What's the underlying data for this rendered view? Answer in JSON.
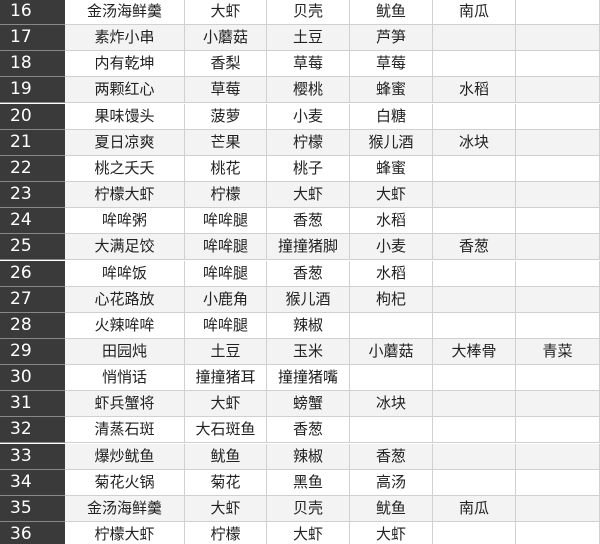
{
  "table": {
    "rows": [
      [
        "16",
        "金汤海鲜羹",
        "大虾",
        "贝壳",
        "鱿鱼",
        "南瓜"
      ],
      [
        "17",
        "素炸小串",
        "小蘑菇",
        "土豆",
        "芦笋"
      ],
      [
        "18",
        "内有乾坤",
        "香梨",
        "草莓",
        "草莓"
      ],
      [
        "19",
        "两颗红心",
        "草莓",
        "樱桃",
        "蜂蜜",
        "水稻"
      ],
      [
        "20",
        "果味馒头",
        "菠萝",
        "小麦",
        "白糖"
      ],
      [
        "21",
        "夏日凉爽",
        "芒果",
        "柠檬",
        "猴儿酒",
        "冰块"
      ],
      [
        "22",
        "桃之夭夭",
        "桃花",
        "桃子",
        "蜂蜜"
      ],
      [
        "23",
        "柠檬大虾",
        "柠檬",
        "大虾",
        "大虾"
      ],
      [
        "24",
        "哞哞粥",
        "哞哞腿",
        "香葱",
        "水稻"
      ],
      [
        "25",
        "大满足饺",
        "哞哞腿",
        "撞撞猪脚",
        "小麦",
        "香葱"
      ],
      [
        "26",
        "哞哞饭",
        "哞哞腿",
        "香葱",
        "水稻"
      ],
      [
        "27",
        "心花路放",
        "小鹿角",
        "猴儿酒",
        "枸杞"
      ],
      [
        "28",
        "火辣哞哞",
        "哞哞腿",
        "辣椒"
      ],
      [
        "29",
        "田园炖",
        "土豆",
        "玉米",
        "小蘑菇",
        "大棒骨",
        "青菜"
      ],
      [
        "30",
        "悄悄话",
        "撞撞猪耳",
        "撞撞猪嘴"
      ],
      [
        "31",
        "虾兵蟹将",
        "大虾",
        "螃蟹",
        "冰块"
      ],
      [
        "32",
        "清蒸石斑",
        "大石斑鱼",
        "香葱"
      ],
      [
        "33",
        "爆炒鱿鱼",
        "鱿鱼",
        "辣椒",
        "香葱"
      ],
      [
        "34",
        "菊花火锅",
        "菊花",
        "黑鱼",
        "高汤"
      ],
      [
        "35",
        "金汤海鲜羹",
        "大虾",
        "贝壳",
        "鱿鱼",
        "南瓜"
      ],
      [
        "36",
        "柠檬大虾",
        "柠檬",
        "大虾",
        "大虾"
      ]
    ]
  }
}
